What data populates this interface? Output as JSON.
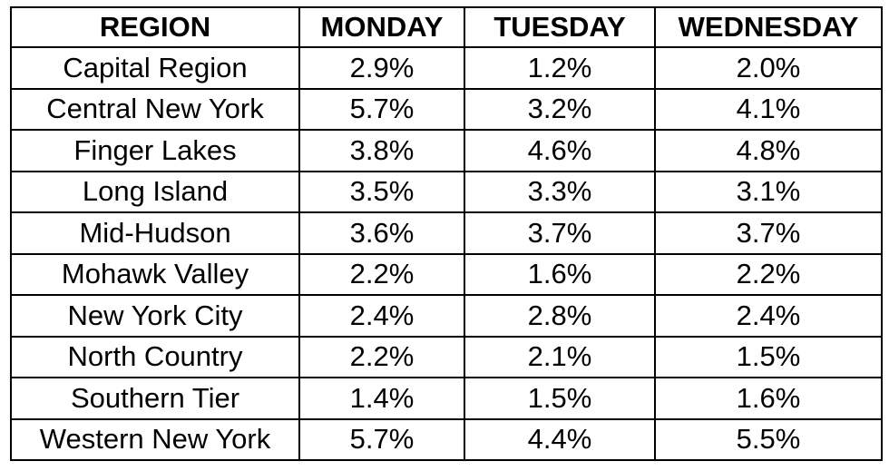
{
  "chart_data": {
    "type": "table",
    "columns": [
      "REGION",
      "MONDAY",
      "TUESDAY",
      "WEDNESDAY"
    ],
    "rows": [
      [
        "Capital Region",
        "2.9%",
        "1.2%",
        "2.0%"
      ],
      [
        "Central New York",
        "5.7%",
        "3.2%",
        "4.1%"
      ],
      [
        "Finger Lakes",
        "3.8%",
        "4.6%",
        "4.8%"
      ],
      [
        "Long Island",
        "3.5%",
        "3.3%",
        "3.1%"
      ],
      [
        "Mid-Hudson",
        "3.6%",
        "3.7%",
        "3.7%"
      ],
      [
        "Mohawk Valley",
        "2.2%",
        "1.6%",
        "2.2%"
      ],
      [
        "New York City",
        "2.4%",
        "2.8%",
        "2.4%"
      ],
      [
        "North Country",
        "2.2%",
        "2.1%",
        "1.5%"
      ],
      [
        "Southern Tier",
        "1.4%",
        "1.5%",
        "1.6%"
      ],
      [
        "Western New York",
        "5.7%",
        "4.4%",
        "5.5%"
      ]
    ]
  }
}
